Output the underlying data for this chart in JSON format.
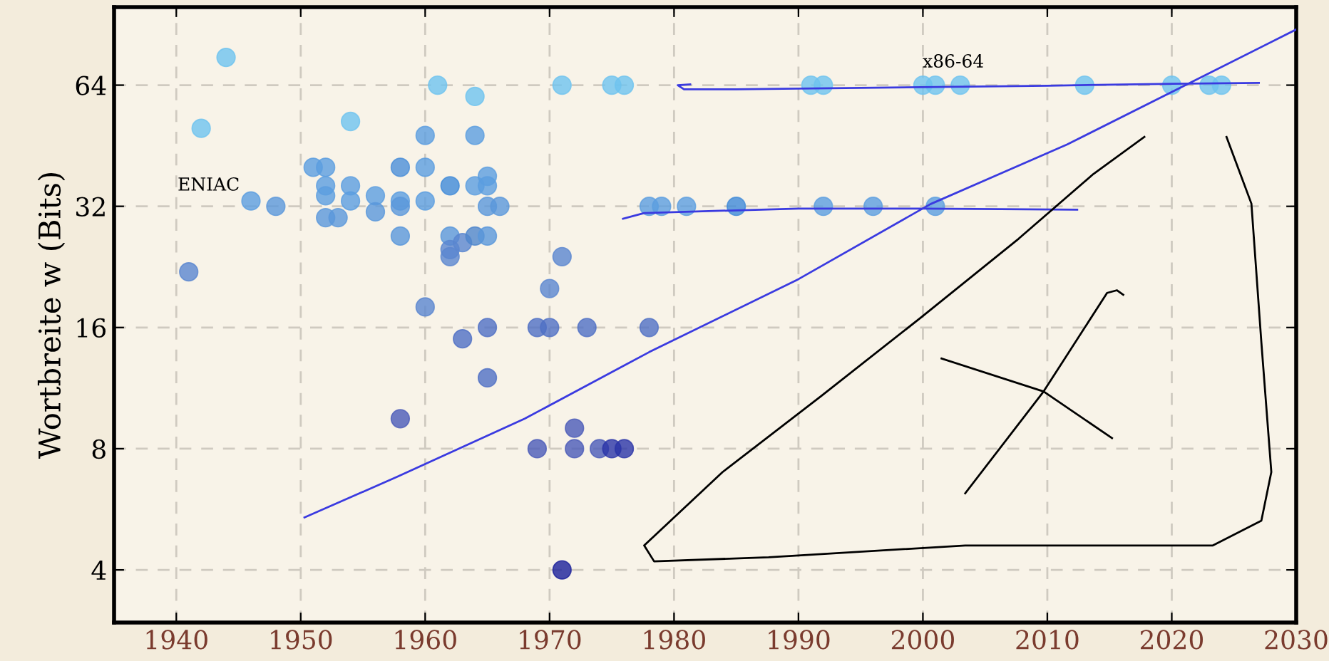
{
  "chart_data": {
    "type": "scatter",
    "ylabel": "Wortbreite w (Bits)",
    "xlim": [
      1935,
      2030
    ],
    "xticks": [
      1940,
      1950,
      1960,
      1970,
      1980,
      1990,
      2000,
      2010,
      2020,
      2030
    ],
    "ylim": [
      2.96,
      100
    ],
    "yticks": [
      4,
      8,
      16,
      32,
      64
    ],
    "log": "y",
    "grid": true,
    "marker": "circle",
    "annotations": [
      "ENIAC",
      "x86-64"
    ],
    "series": [
      {
        "x": [
          1944,
          1942,
          1941,
          1946,
          1948,
          1951,
          1952,
          1952,
          1952,
          1952,
          1953,
          1954,
          1954,
          1954,
          1956,
          1956,
          1958,
          1958,
          1958,
          1958,
          1958,
          1960,
          1960,
          1960,
          1960,
          1961,
          1962,
          1962,
          1962,
          1962,
          1963,
          1963,
          1964,
          1964,
          1964,
          1964,
          1965,
          1965,
          1965,
          1965,
          1965,
          1965,
          1966,
          1969,
          1969,
          1971,
          1975,
          1976,
          1991,
          1992,
          2000,
          2001,
          2003,
          2013,
          2020,
          2023,
          2024,
          1978,
          1979,
          1981,
          1985,
          1992,
          1996,
          2001,
          1971,
          1970,
          1970,
          1973,
          1978,
          1972,
          1972,
          1974,
          1975,
          1976,
          1971
        ],
        "values": [
          75,
          50,
          22,
          33,
          32,
          40,
          40,
          36,
          34,
          30,
          30,
          52,
          36,
          33,
          34,
          31,
          40,
          33,
          32,
          27,
          9.5,
          48,
          40,
          33,
          18,
          64,
          36,
          27,
          25,
          24,
          26,
          15,
          60,
          48,
          36,
          27,
          38,
          36,
          32,
          27,
          16,
          12,
          32,
          16,
          8,
          64,
          64,
          64,
          64,
          64,
          64,
          64,
          64,
          64,
          64,
          64,
          64,
          32,
          32,
          32,
          32,
          32,
          32,
          32,
          24,
          20,
          16,
          16,
          16,
          9,
          8,
          8,
          8,
          8,
          4
        ],
        "colors": [
          "#6ec3ef",
          "#6ec3ef",
          "#5a86d0",
          "#5b9ee0",
          "#5a97db",
          "#5b9ee0",
          "#5b9ee0",
          "#5b9ee0",
          "#5b9ee0",
          "#5a97db",
          "#5a97db",
          "#6ec3ef",
          "#5b9ee0",
          "#5b9ee0",
          "#5b9ee0",
          "#5a97db",
          "#4b8fd8",
          "#5b9ee0",
          "#5a97db",
          "#5a97db",
          "#4a5ab8",
          "#5b9ee0",
          "#5b9ee0",
          "#5b9ee0",
          "#5a86d0",
          "#6ec3ef",
          "#3f8ad8",
          "#5a97db",
          "#5a86d0",
          "#5a86d0",
          "#5a86d0",
          "#4f6fc4",
          "#6ec3ef",
          "#5b9ee0",
          "#5b9ee0",
          "#4f86cc",
          "#5b9ee0",
          "#5b9ee0",
          "#5a97db",
          "#5a97db",
          "#4f6fc4",
          "#4f6fc4",
          "#5a97db",
          "#4f6fc4",
          "#4a5ab8",
          "#6ec3ef",
          "#6ec3ef",
          "#6ec3ef",
          "#6ec3ef",
          "#6ec3ef",
          "#6ec3ef",
          "#6ec3ef",
          "#6ec3ef",
          "#6ec3ef",
          "#6ec3ef",
          "#6ec3ef",
          "#6ec3ef",
          "#5b9ee0",
          "#5b9ee0",
          "#5b9ee0",
          "#3f8ad8",
          "#5b9ee0",
          "#5b9ee0",
          "#5b9ee0",
          "#5a86d0",
          "#5a86d0",
          "#4f6fc4",
          "#4f6fc4",
          "#4f6fc4",
          "#4a5ab8",
          "#4a5ab8",
          "#4a5ab8",
          "#2a35a8",
          "#2a35a8",
          "#1a1f9a"
        ]
      },
      {
        "type": "line",
        "marker": "none",
        "color": "#3a3ae0",
        "x": [
          1950.3,
          1957.7,
          1968,
          1978,
          1990,
          2000.6,
          2011.6,
          2021.1,
          2030
        ],
        "values": [
          5.4,
          6.8,
          9.5,
          13.9,
          21.1,
          32.4,
          45.6,
          64,
          88
        ]
      },
      {
        "type": "line",
        "marker": "none",
        "color": "#3a3ae0",
        "x": [
          1975.9,
          1977.6,
          1990,
          2000,
          2012.4
        ],
        "values": [
          29.8,
          30.8,
          31.6,
          31.6,
          31.4
        ]
      },
      {
        "type": "line",
        "marker": "none",
        "color": "#3a3ae0",
        "x": [
          1981.3,
          1980.3,
          1980.8,
          1985,
          1995,
          2010,
          2020,
          2027
        ],
        "values": [
          64.3,
          64,
          62.5,
          62.5,
          63,
          63.8,
          64.5,
          64.8
        ]
      },
      {
        "type": "line",
        "marker": "none",
        "color": "#000000",
        "x": [
          2017.8,
          2013.7,
          2007.7,
          1999.8,
          1991.8,
          1983.9,
          1977.6,
          1978.4,
          1987.6,
          2003.4,
          2023.3,
          2027.2,
          2028.0,
          2027.2,
          2026.4,
          2024.4
        ],
        "values": [
          47.6,
          38.5,
          26.6,
          16.9,
          10.8,
          7.0,
          4.6,
          4.2,
          4.3,
          4.6,
          4.6,
          5.3,
          7.0,
          14.7,
          32.5,
          47.6
        ]
      },
      {
        "type": "line",
        "marker": "none",
        "color": "#000000",
        "x": [
          2001.5,
          2009.7,
          2015.2
        ],
        "values": [
          13.4,
          11.1,
          8.5
        ]
      },
      {
        "type": "line",
        "marker": "none",
        "color": "#000000",
        "x": [
          2003.4,
          2009.7,
          2014.8,
          2015.6,
          2016.1
        ],
        "values": [
          6.2,
          11.1,
          19.5,
          19.8,
          19.3
        ]
      }
    ]
  }
}
